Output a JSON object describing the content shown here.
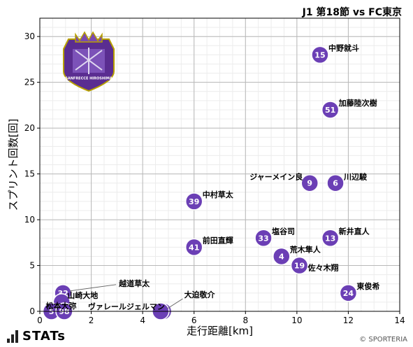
{
  "header": {
    "title": "J1 第18節 vs FC東京"
  },
  "branding": {
    "logo_text": "STATs",
    "copyright": "© SPORTERIA",
    "crest_text": "SANFRECCE HIROSHIMA"
  },
  "chart_data": {
    "type": "scatter",
    "xlabel": "走行距離[km]",
    "ylabel": "スプリント回数[回]",
    "xlim": [
      0,
      14
    ],
    "ylim": [
      0,
      32
    ],
    "xticks": [
      0,
      2,
      4,
      6,
      8,
      10,
      12,
      14
    ],
    "yticks": [
      0,
      5,
      10,
      15,
      20,
      25,
      30
    ],
    "grid": true,
    "marker_color": "#6b3fb5",
    "points": [
      {
        "number": "15",
        "name": "中野就斗",
        "x": 10.9,
        "y": 28
      },
      {
        "number": "51",
        "name": "加藤陸次樹",
        "x": 11.3,
        "y": 22
      },
      {
        "number": "9",
        "name": "ジャーメイン良",
        "x": 10.5,
        "y": 14
      },
      {
        "number": "6",
        "name": "川辺駿",
        "x": 11.5,
        "y": 14
      },
      {
        "number": "39",
        "name": "中村草太",
        "x": 6.0,
        "y": 12
      },
      {
        "number": "33",
        "name": "塩谷司",
        "x": 8.7,
        "y": 8
      },
      {
        "number": "13",
        "name": "新井直人",
        "x": 11.3,
        "y": 8
      },
      {
        "number": "41",
        "name": "前田直輝",
        "x": 6.0,
        "y": 7
      },
      {
        "number": "4",
        "name": "荒木隼人",
        "x": 9.4,
        "y": 6
      },
      {
        "number": "19",
        "name": "佐々木翔",
        "x": 10.1,
        "y": 5
      },
      {
        "number": "24",
        "name": "東俊希",
        "x": 12.0,
        "y": 2
      },
      {
        "number": "32",
        "name": "越道草太",
        "x": 0.9,
        "y": 2
      },
      {
        "number": "",
        "name": "山崎大地",
        "x": 0.85,
        "y": 1
      },
      {
        "number": "",
        "name": "大迫敬介",
        "x": 4.8,
        "y": 0
      },
      {
        "number": "",
        "name": "ヴァレールジェルマン",
        "x": 4.7,
        "y": 0
      },
      {
        "number": "5",
        "name": "松本大弥",
        "x": 0.45,
        "y": 0
      },
      {
        "number": "98",
        "name": "",
        "x": 0.95,
        "y": 0
      }
    ]
  }
}
